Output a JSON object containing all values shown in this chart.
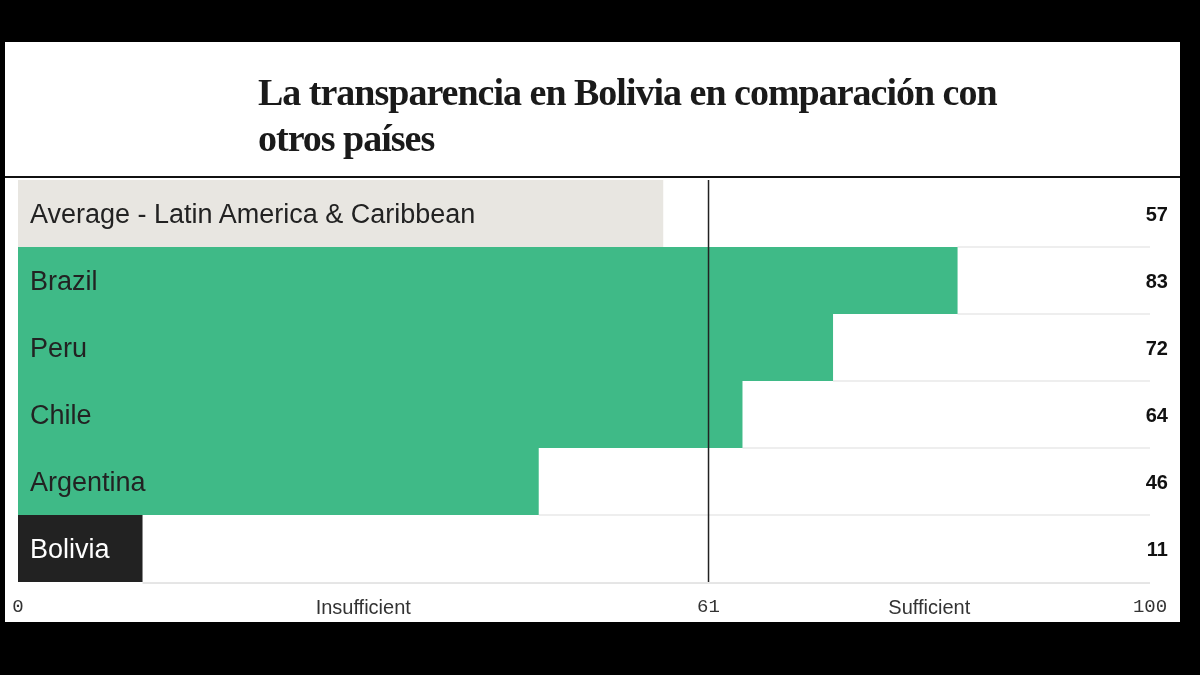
{
  "chart_data": {
    "type": "bar",
    "orientation": "horizontal",
    "title": "La transparencia en Bolivia en comparación con otros países",
    "categories": [
      "Average - Latin America & Caribbean",
      "Brazil",
      "Peru",
      "Chile",
      "Argentina",
      "Bolivia"
    ],
    "values": [
      57,
      83,
      72,
      64,
      46,
      11
    ],
    "colors": [
      "#e8e6e1",
      "#3fba87",
      "#3fba87",
      "#3fba87",
      "#3fba87",
      "#222222"
    ],
    "xlim": [
      0,
      100
    ],
    "xticks": [
      0,
      61,
      100
    ],
    "ref_lines": [
      {
        "axis": "x",
        "value": 61,
        "color": "#222222"
      }
    ],
    "annotations": [
      "Insufficient",
      "Sufficient"
    ],
    "data_labels": true
  }
}
